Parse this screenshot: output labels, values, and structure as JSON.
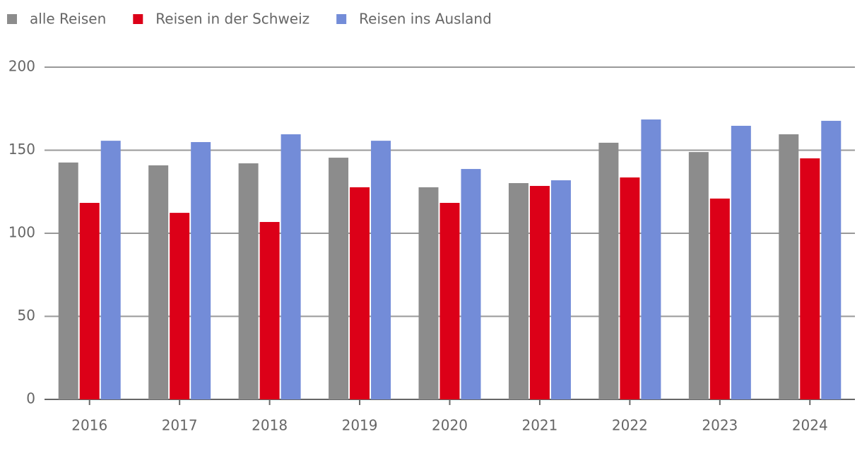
{
  "chart_data": {
    "type": "bar",
    "categories": [
      "2016",
      "2017",
      "2018",
      "2019",
      "2020",
      "2021",
      "2022",
      "2023",
      "2024"
    ],
    "series": [
      {
        "name": "alle Reisen",
        "color": "#8c8c8c",
        "values": [
          142.6,
          140.9,
          142.1,
          145.5,
          127.7,
          130.2,
          154.5,
          148.9,
          159.6
        ]
      },
      {
        "name": "Reisen in der Schweiz",
        "color": "#dc0018",
        "values": [
          118.3,
          112.3,
          106.8,
          127.7,
          118.3,
          128.5,
          133.6,
          120.9,
          145.1
        ]
      },
      {
        "name": "Reisen ins Ausland",
        "color": "#738cd8",
        "values": [
          155.7,
          154.9,
          159.6,
          155.7,
          138.7,
          131.9,
          168.5,
          164.7,
          167.7
        ]
      }
    ],
    "ylim": [
      0,
      200
    ],
    "yticks": [
      0,
      50,
      100,
      150,
      200
    ],
    "grid": true,
    "legend": "top"
  }
}
